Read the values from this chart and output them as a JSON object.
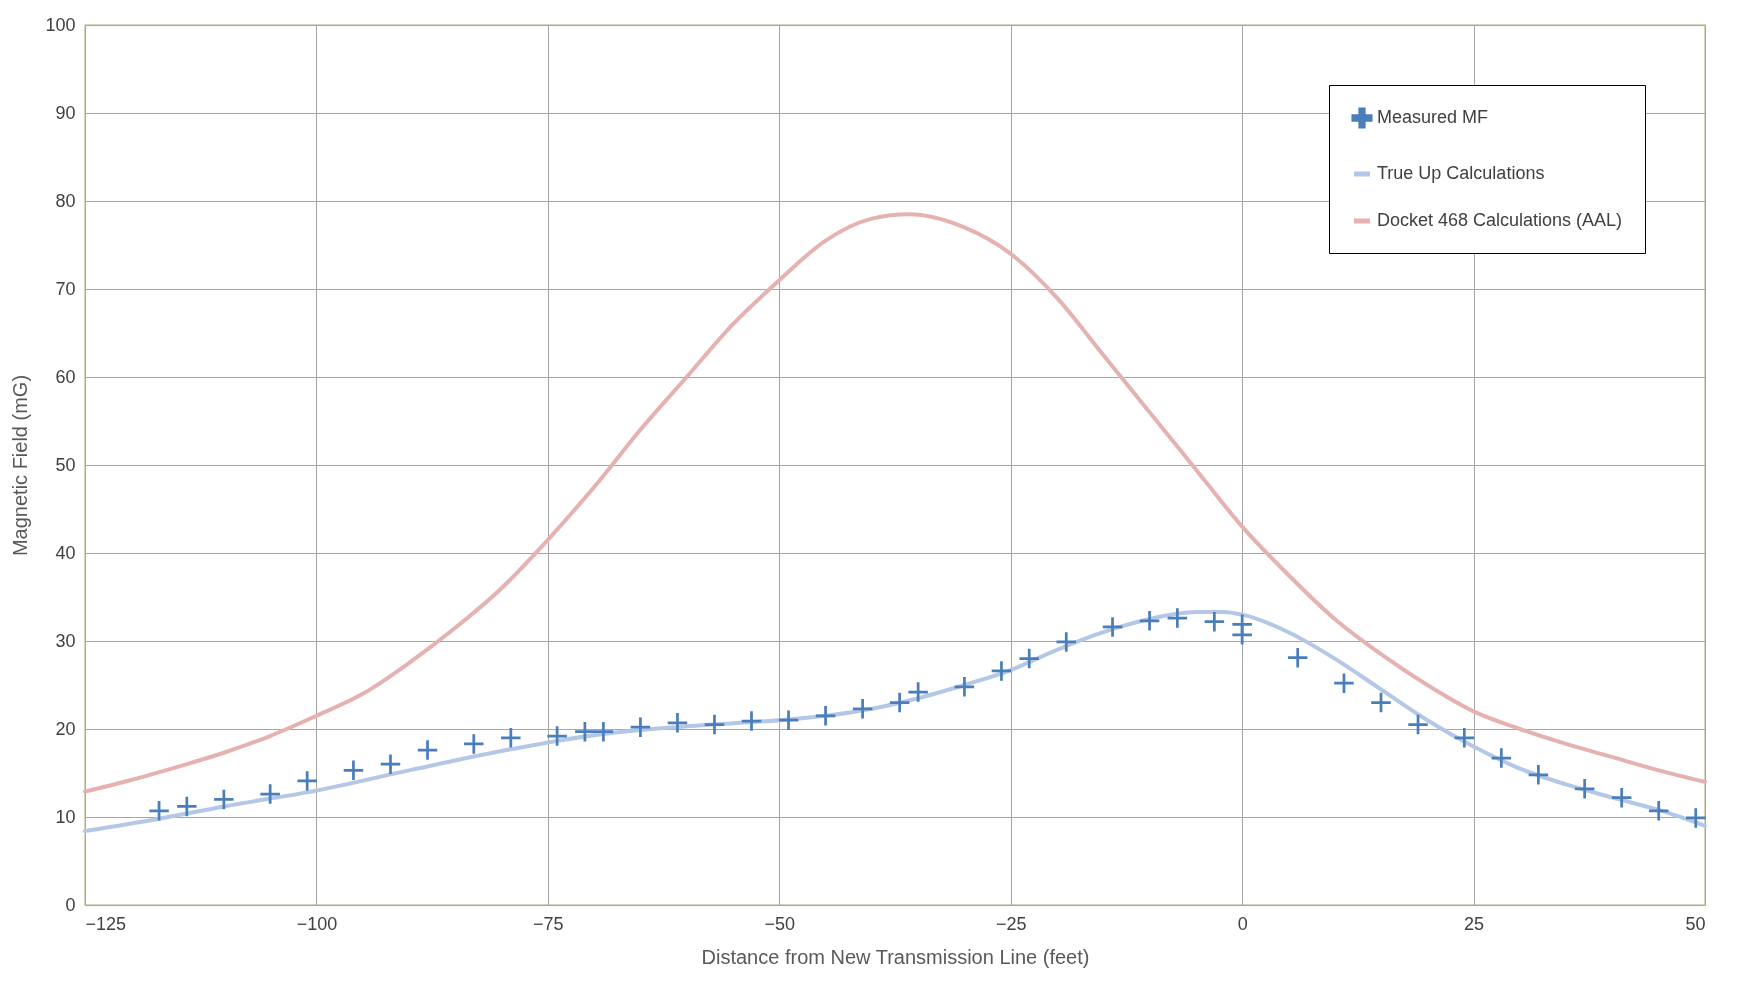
{
  "chart_data": {
    "type": "scatter",
    "xlabel": "Distance from New Transmission Line (feet)",
    "ylabel": "Magnetic Field (mG)",
    "xlim": [
      -125,
      50
    ],
    "xticks": [
      -125,
      -100,
      -75,
      -50,
      -25,
      0,
      25,
      50
    ],
    "ylim": [
      0,
      100
    ],
    "yticks": [
      0,
      10,
      20,
      30,
      40,
      50,
      60,
      70,
      80,
      90,
      100
    ],
    "grid": true,
    "legend": "top right",
    "series": [
      {
        "name": "Measured MF",
        "marker": "cross",
        "color": "#4a7ebb",
        "x": [
          -117,
          -114,
          -110,
          -105,
          -101,
          -96,
          -92,
          -88,
          -83,
          -79,
          -74,
          -71,
          -69,
          -65,
          -61,
          -57,
          -53,
          -49,
          -45,
          -41,
          -37,
          -35,
          -30,
          -26,
          -23,
          -19,
          -14,
          -10,
          -7,
          -3,
          0,
          0,
          6,
          11,
          15,
          19,
          24,
          28,
          32,
          37,
          41,
          45,
          49
        ],
        "values": [
          10.7,
          11.2,
          12.0,
          12.6,
          14.1,
          15.3,
          16.0,
          17.6,
          18.3,
          19.0,
          19.2,
          19.7,
          19.7,
          20.2,
          20.7,
          20.5,
          20.9,
          21.0,
          21.5,
          22.3,
          23.0,
          24.2,
          24.8,
          26.6,
          28.0,
          29.9,
          31.6,
          32.3,
          32.6,
          32.2,
          31.9,
          30.7,
          28.1,
          25.2,
          23.0,
          20.5,
          19.0,
          16.7,
          14.8,
          13.2,
          12.2,
          10.7,
          9.9
        ]
      },
      {
        "name": "True Up Calculations",
        "type": "line",
        "color": "#b4c7e7",
        "x": [
          -125,
          -117,
          -110,
          -100,
          -90,
          -80,
          -70,
          -60,
          -50,
          -45,
          -40,
          -35,
          -30,
          -25,
          -20,
          -15,
          -10,
          -5,
          -2,
          0,
          5,
          10,
          15,
          20,
          25,
          30,
          35,
          40,
          45,
          50
        ],
        "values": [
          8.4,
          9.8,
          11.2,
          13.0,
          15.3,
          17.5,
          19.3,
          20.3,
          21.0,
          21.5,
          22.3,
          23.5,
          25.0,
          26.7,
          29.0,
          31.0,
          32.5,
          33.3,
          33.3,
          33.0,
          31.0,
          28.0,
          24.5,
          21.0,
          18.0,
          15.5,
          13.7,
          12.2,
          10.8,
          9.0
        ]
      },
      {
        "name": "Docket 468 Calculations (AAL)",
        "type": "line",
        "color": "#e6b1b1",
        "x": [
          -125,
          -120,
          -115,
          -110,
          -105,
          -100,
          -95,
          -90,
          -85,
          -80,
          -75,
          -70,
          -65,
          -60,
          -55,
          -50,
          -45,
          -40,
          -36,
          -30,
          -25,
          -20,
          -15,
          -10,
          -5,
          0,
          5,
          10,
          15,
          20,
          25,
          30,
          35,
          40,
          45,
          50
        ],
        "values": [
          12.9,
          14.2,
          15.7,
          17.3,
          19.2,
          21.5,
          24.0,
          27.5,
          31.5,
          36.0,
          41.5,
          47.5,
          54.0,
          60.0,
          66.0,
          71.0,
          75.5,
          78.0,
          78.5,
          77.0,
          74.0,
          69.0,
          62.5,
          56.0,
          49.5,
          43.0,
          37.5,
          32.5,
          28.5,
          25.0,
          22.0,
          20.0,
          18.3,
          16.8,
          15.3,
          14.0
        ]
      }
    ]
  }
}
